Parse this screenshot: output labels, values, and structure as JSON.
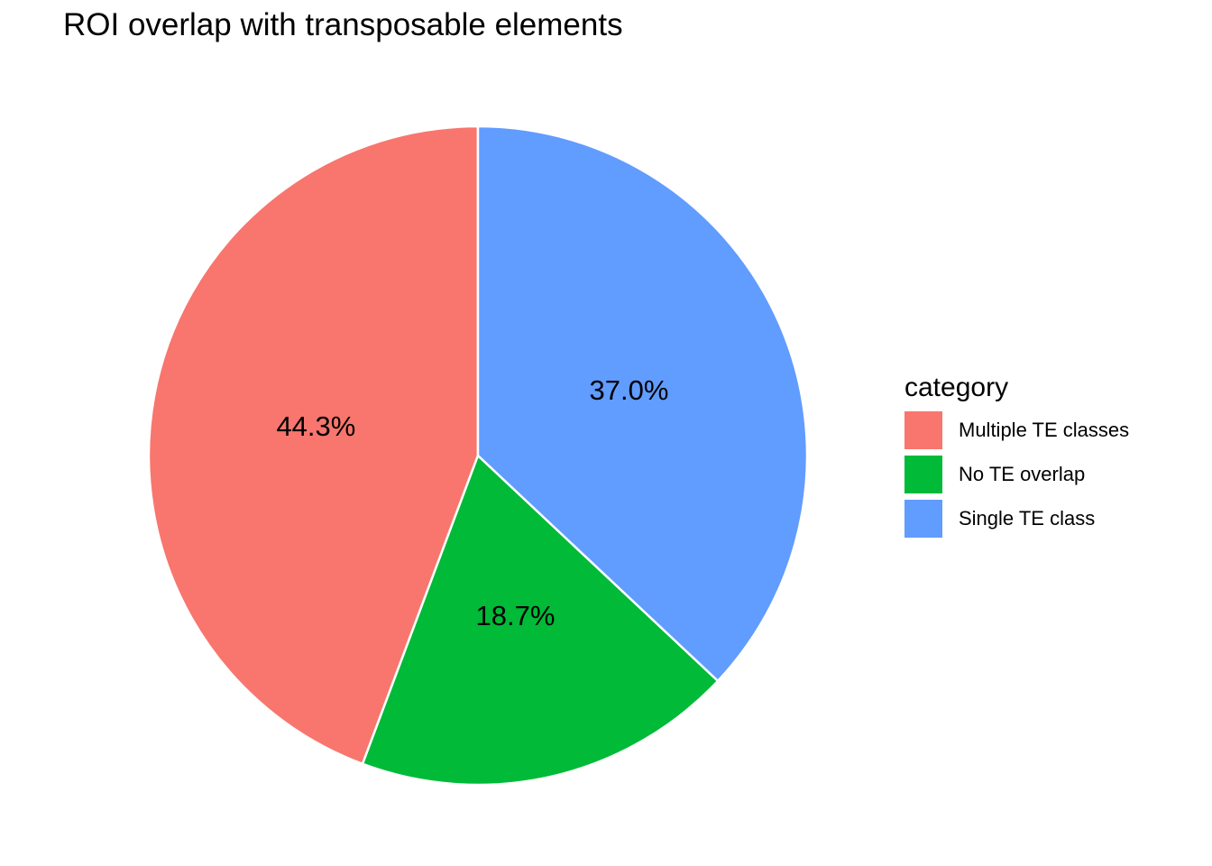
{
  "title": "ROI overlap with transposable elements",
  "legend": {
    "title": "category",
    "items": [
      {
        "label": "Multiple TE classes",
        "color": "#F8766D"
      },
      {
        "label": "No TE overlap",
        "color": "#00BA38"
      },
      {
        "label": "Single TE class",
        "color": "#619CFF"
      }
    ]
  },
  "chart_data": {
    "type": "pie",
    "title": "ROI overlap with transposable elements",
    "legend_title": "category",
    "legend_position": "right",
    "categories": [
      "Multiple TE classes",
      "No TE overlap",
      "Single TE class"
    ],
    "values": [
      44.3,
      18.7,
      37.0
    ],
    "slice_labels": [
      "44.3%",
      "18.7%",
      "37.0%"
    ],
    "colors": [
      "#F8766D",
      "#00BA38",
      "#619CFF"
    ],
    "start_angle_deg": 0,
    "direction": "counterclockwise",
    "slice_border_color": "#FFFFFF",
    "label_color": "#000000",
    "background": "#FFFFFF"
  }
}
